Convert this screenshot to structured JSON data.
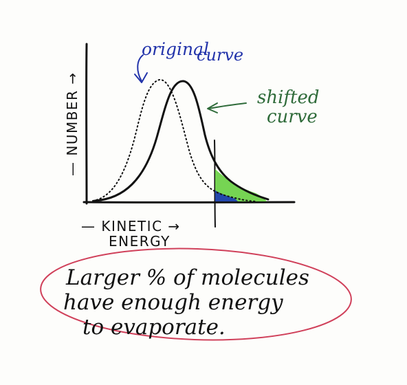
{
  "labels": {
    "original_line1": "original",
    "original_line2": "curve",
    "shifted_line1": "shifted",
    "shifted_line2": "curve",
    "y_axis": "— NUMBER →",
    "x_axis_line1": "— KINETIC →",
    "x_axis_line2": "ENERGY",
    "note_line1": "Larger % of molecules",
    "note_line2": "have enough energy",
    "note_line3": "to evaporate."
  },
  "colors": {
    "ink": "#111111",
    "blue_ink": "#2233aa",
    "green_ink": "#2f6b3a",
    "red_ink": "#d0405a",
    "green_fill": "#6fd24a",
    "blue_fill": "#1f3fb0"
  }
}
